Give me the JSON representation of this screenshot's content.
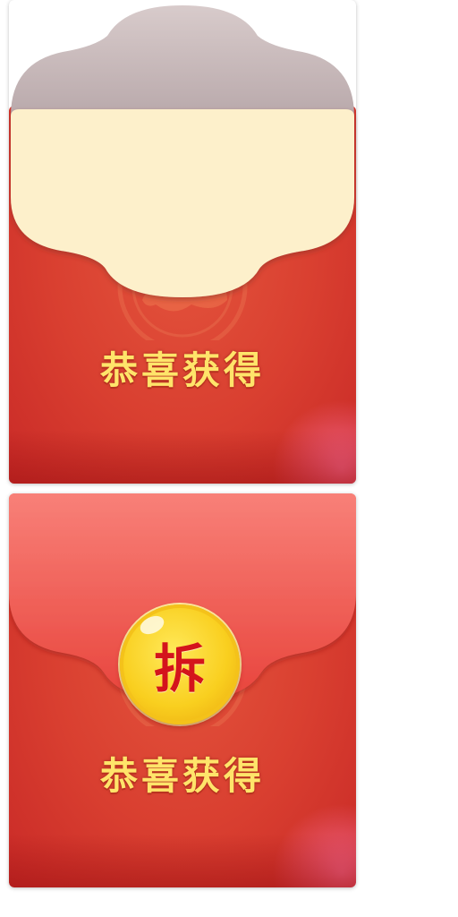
{
  "packets": {
    "opened": {
      "title": "恭喜获得",
      "flap_color": "#ccbcbc",
      "card_color": "#fdf0cb"
    },
    "closed": {
      "title": "恭喜获得",
      "open_button_label": "拆",
      "flap_color": "#f2605a"
    }
  },
  "colors": {
    "packet_red": "#d93f30",
    "title_gold": "#ffe46a",
    "button_gold": "#f9cf1f",
    "button_text": "#d4141c"
  }
}
